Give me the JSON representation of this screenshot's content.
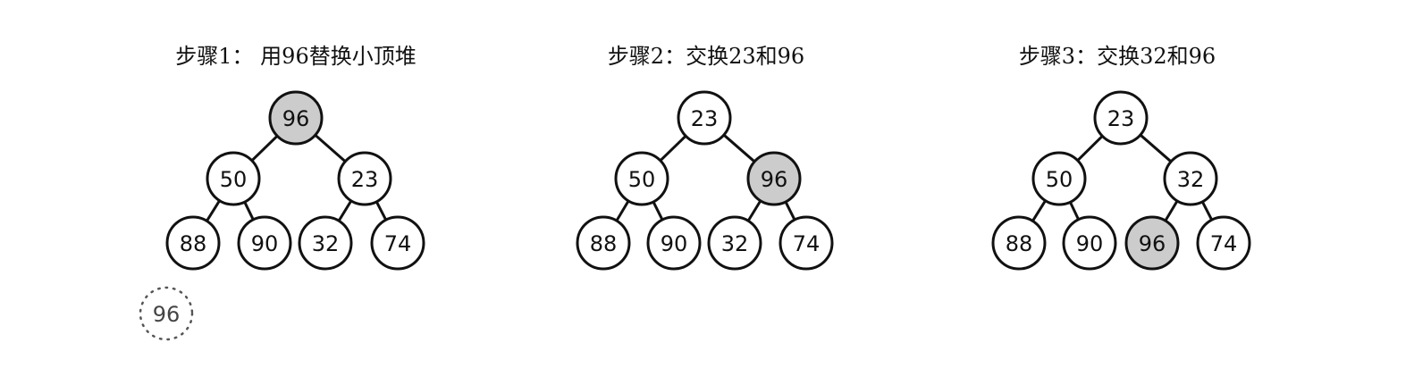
{
  "colors": {
    "highlight": "#cccccc",
    "normal": "#ffffff",
    "line": "#111111"
  },
  "panels": [
    {
      "title": "步骤1： 用96替换小顶堆",
      "nodes": [
        {
          "value": "96",
          "highlighted": true
        },
        {
          "value": "50",
          "highlighted": false
        },
        {
          "value": "23",
          "highlighted": false
        },
        {
          "value": "88",
          "highlighted": false
        },
        {
          "value": "90",
          "highlighted": false
        },
        {
          "value": "32",
          "highlighted": false
        },
        {
          "value": "74",
          "highlighted": false
        }
      ],
      "extra_node": {
        "value": "96"
      }
    },
    {
      "title": "步骤2：交换23和96",
      "nodes": [
        {
          "value": "23",
          "highlighted": false
        },
        {
          "value": "50",
          "highlighted": false
        },
        {
          "value": "96",
          "highlighted": true
        },
        {
          "value": "88",
          "highlighted": false
        },
        {
          "value": "90",
          "highlighted": false
        },
        {
          "value": "32",
          "highlighted": false
        },
        {
          "value": "74",
          "highlighted": false
        }
      ]
    },
    {
      "title": "步骤3：交换32和96",
      "nodes": [
        {
          "value": "23",
          "highlighted": false
        },
        {
          "value": "50",
          "highlighted": false
        },
        {
          "value": "32",
          "highlighted": false
        },
        {
          "value": "88",
          "highlighted": false
        },
        {
          "value": "90",
          "highlighted": false
        },
        {
          "value": "96",
          "highlighted": true
        },
        {
          "value": "74",
          "highlighted": false
        }
      ]
    }
  ]
}
